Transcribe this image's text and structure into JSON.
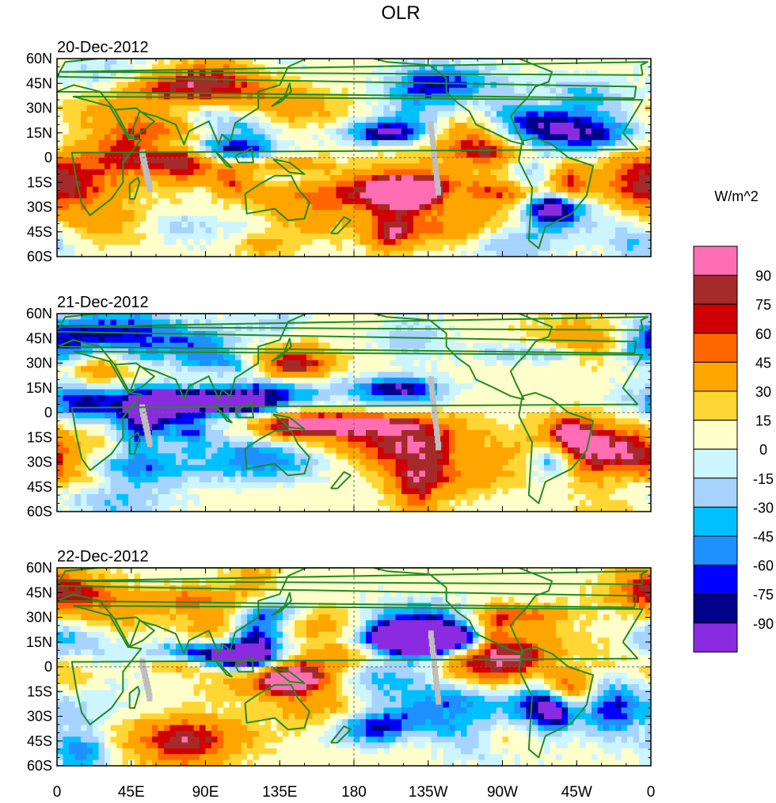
{
  "chart_data": {
    "type": "heatmap",
    "title": "OLR",
    "colorbar": {
      "unit_label": "W/m^2",
      "levels": [
        "90",
        "75",
        "60",
        "45",
        "30",
        "15",
        "0",
        "-15",
        "-30",
        "-45",
        "-60",
        "-75",
        "-90"
      ],
      "colors": [
        "#ff6eb4",
        "#a52a2a",
        "#d00000",
        "#ff6600",
        "#ffa500",
        "#ffd633",
        "#ffffcc",
        "#ccf5ff",
        "#a6d3ff",
        "#00bfff",
        "#1e90ff",
        "#0000ff",
        "#00008b",
        "#8a2be2"
      ]
    },
    "x_ticks": [
      "0",
      "45E",
      "90E",
      "135E",
      "180",
      "135W",
      "90W",
      "45W",
      "0"
    ],
    "y_ticks": [
      "60N",
      "45N",
      "30N",
      "15N",
      "0",
      "15S",
      "30S",
      "45S",
      "60S"
    ],
    "panels": [
      {
        "date": "20-Dec-2012"
      },
      {
        "date": "21-Dec-2012"
      },
      {
        "date": "22-Dec-2012"
      }
    ]
  },
  "colors": {
    "coast": "#228b22",
    "missing": "#bebebe",
    "grid": "#666666"
  }
}
